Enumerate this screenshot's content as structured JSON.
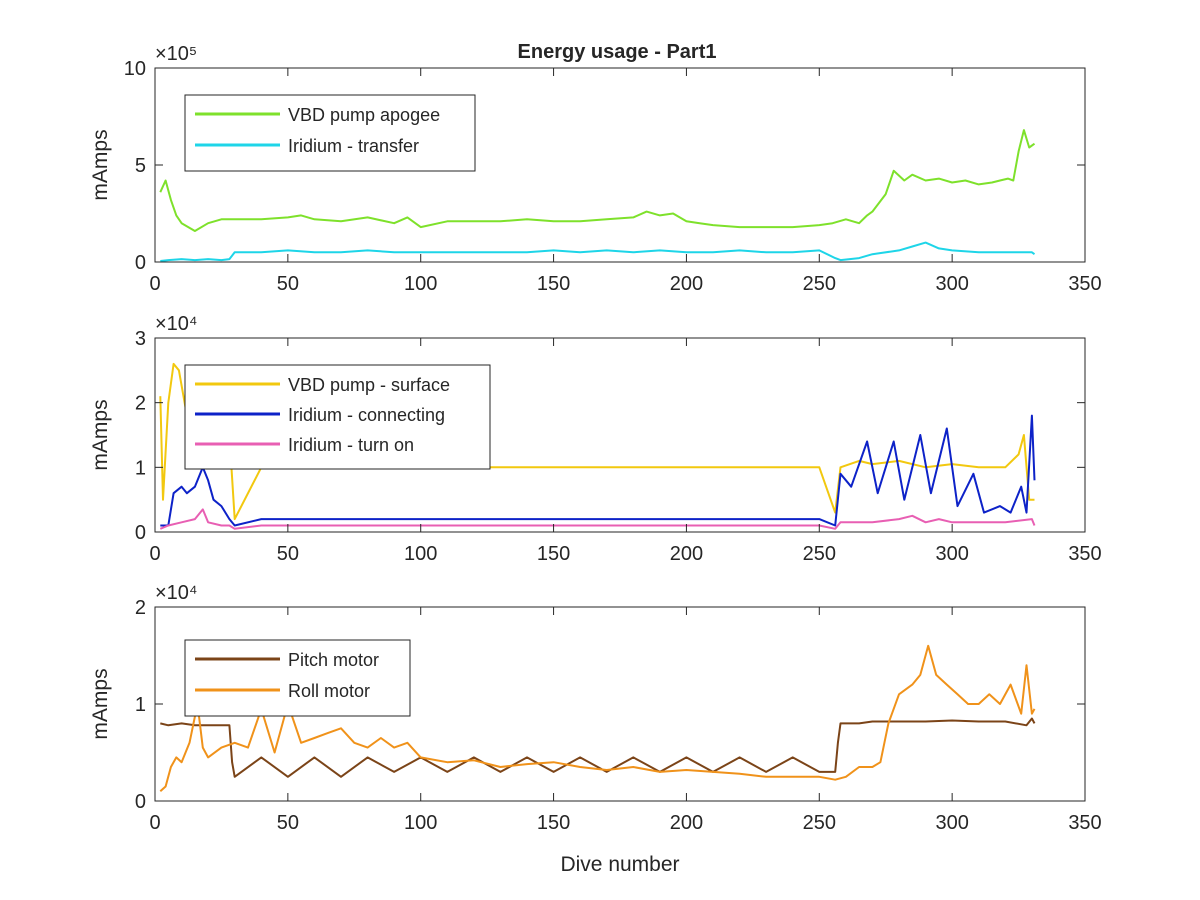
{
  "title": "Energy usage - Part1",
  "xlabel": "Dive number",
  "chart_data": [
    {
      "type": "line",
      "title": "Energy usage - Part1",
      "xlabel": "",
      "ylabel": "mAmps",
      "xlim": [
        0,
        350
      ],
      "ylim": [
        0,
        10
      ],
      "exponent": "×10⁵",
      "xticks": [
        "0",
        "50",
        "100",
        "150",
        "200",
        "250",
        "300",
        "350"
      ],
      "yticks": [
        "0",
        "5",
        "10"
      ],
      "legend": "top-left",
      "series": [
        {
          "name": "VBD pump apogee",
          "color": "#7ee12b",
          "x": [
            2,
            4,
            6,
            8,
            10,
            15,
            20,
            25,
            30,
            40,
            50,
            55,
            60,
            70,
            80,
            90,
            95,
            100,
            110,
            120,
            130,
            140,
            150,
            160,
            170,
            180,
            185,
            190,
            195,
            200,
            205,
            210,
            220,
            230,
            240,
            250,
            255,
            260,
            265,
            268,
            270,
            275,
            278,
            282,
            285,
            290,
            295,
            300,
            305,
            310,
            315,
            318,
            321,
            323,
            325,
            327,
            329,
            331
          ],
          "y": [
            3.6,
            4.2,
            3.2,
            2.4,
            2.0,
            1.6,
            2.0,
            2.2,
            2.2,
            2.2,
            2.3,
            2.4,
            2.2,
            2.1,
            2.3,
            2.0,
            2.3,
            1.8,
            2.1,
            2.1,
            2.1,
            2.2,
            2.1,
            2.1,
            2.2,
            2.3,
            2.6,
            2.4,
            2.5,
            2.1,
            2.0,
            1.9,
            1.8,
            1.8,
            1.8,
            1.9,
            2.0,
            2.2,
            2.0,
            2.4,
            2.6,
            3.5,
            4.7,
            4.2,
            4.5,
            4.2,
            4.3,
            4.1,
            4.2,
            4.0,
            4.1,
            4.2,
            4.3,
            4.2,
            5.7,
            6.8,
            5.9,
            6.1
          ]
        },
        {
          "name": "Iridium - transfer",
          "color": "#1ed5e8",
          "x": [
            2,
            5,
            10,
            15,
            20,
            25,
            28,
            30,
            40,
            50,
            60,
            70,
            80,
            90,
            100,
            110,
            120,
            130,
            140,
            150,
            160,
            170,
            180,
            190,
            200,
            210,
            220,
            230,
            240,
            250,
            256,
            258,
            265,
            270,
            280,
            285,
            290,
            295,
            300,
            310,
            320,
            330,
            331
          ],
          "y": [
            0.05,
            0.1,
            0.15,
            0.1,
            0.15,
            0.1,
            0.15,
            0.5,
            0.5,
            0.6,
            0.5,
            0.5,
            0.6,
            0.5,
            0.5,
            0.5,
            0.5,
            0.5,
            0.5,
            0.6,
            0.5,
            0.6,
            0.5,
            0.6,
            0.5,
            0.5,
            0.6,
            0.5,
            0.5,
            0.6,
            0.2,
            0.1,
            0.2,
            0.4,
            0.6,
            0.8,
            1.0,
            0.7,
            0.6,
            0.5,
            0.5,
            0.5,
            0.4
          ]
        }
      ]
    },
    {
      "type": "line",
      "title": "",
      "xlabel": "",
      "ylabel": "mAmps",
      "xlim": [
        0,
        350
      ],
      "ylim": [
        0,
        3
      ],
      "exponent": "×10⁴",
      "xticks": [
        "0",
        "50",
        "100",
        "150",
        "200",
        "250",
        "300",
        "350"
      ],
      "yticks": [
        "0",
        "1",
        "2",
        "3"
      ],
      "legend": "top-left",
      "series": [
        {
          "name": "VBD pump - surface",
          "color": "#f2c80f",
          "x": [
            2,
            3,
            5,
            7,
            9,
            12,
            15,
            20,
            25,
            28,
            30,
            40,
            50,
            60,
            70,
            80,
            90,
            100,
            110,
            120,
            130,
            140,
            150,
            160,
            170,
            180,
            190,
            200,
            210,
            220,
            230,
            240,
            250,
            256,
            258,
            265,
            270,
            280,
            290,
            300,
            310,
            320,
            325,
            327,
            329,
            331
          ],
          "y": [
            2.1,
            0.5,
            2.0,
            2.6,
            2.5,
            1.8,
            1.6,
            1.2,
            1.0,
            1.5,
            0.2,
            1.0,
            1.0,
            1.0,
            1.0,
            1.0,
            1.0,
            1.0,
            1.0,
            1.0,
            1.0,
            1.0,
            1.0,
            1.0,
            1.0,
            1.0,
            1.0,
            1.0,
            1.0,
            1.0,
            1.0,
            1.0,
            1.0,
            0.3,
            1.0,
            1.1,
            1.05,
            1.1,
            1.0,
            1.05,
            1.0,
            1.0,
            1.2,
            1.5,
            0.5,
            0.5
          ]
        },
        {
          "name": "Iridium - connecting",
          "color": "#0d22c8",
          "x": [
            2,
            5,
            7,
            10,
            12,
            15,
            18,
            20,
            22,
            25,
            28,
            30,
            40,
            50,
            60,
            70,
            80,
            90,
            100,
            110,
            120,
            130,
            140,
            150,
            160,
            170,
            180,
            190,
            200,
            210,
            220,
            230,
            240,
            250,
            256,
            258,
            262,
            268,
            272,
            278,
            282,
            288,
            292,
            298,
            302,
            308,
            312,
            318,
            322,
            326,
            328,
            330,
            331
          ],
          "y": [
            0.1,
            0.1,
            0.6,
            0.7,
            0.6,
            0.7,
            1.0,
            0.8,
            0.5,
            0.4,
            0.2,
            0.1,
            0.2,
            0.2,
            0.2,
            0.2,
            0.2,
            0.2,
            0.2,
            0.2,
            0.2,
            0.2,
            0.2,
            0.2,
            0.2,
            0.2,
            0.2,
            0.2,
            0.2,
            0.2,
            0.2,
            0.2,
            0.2,
            0.2,
            0.1,
            0.9,
            0.7,
            1.4,
            0.6,
            1.4,
            0.5,
            1.5,
            0.6,
            1.6,
            0.4,
            0.9,
            0.3,
            0.4,
            0.3,
            0.7,
            0.3,
            1.8,
            0.8
          ]
        },
        {
          "name": "Iridium - turn on",
          "color": "#e85fb3",
          "x": [
            2,
            5,
            10,
            15,
            18,
            20,
            25,
            28,
            30,
            40,
            50,
            60,
            70,
            80,
            90,
            100,
            110,
            120,
            130,
            140,
            150,
            160,
            170,
            180,
            190,
            200,
            210,
            220,
            230,
            240,
            250,
            256,
            258,
            265,
            270,
            280,
            285,
            290,
            295,
            300,
            310,
            320,
            330,
            331
          ],
          "y": [
            0.05,
            0.1,
            0.15,
            0.2,
            0.35,
            0.15,
            0.1,
            0.1,
            0.05,
            0.1,
            0.1,
            0.1,
            0.1,
            0.1,
            0.1,
            0.1,
            0.1,
            0.1,
            0.1,
            0.1,
            0.1,
            0.1,
            0.1,
            0.1,
            0.1,
            0.1,
            0.1,
            0.1,
            0.1,
            0.1,
            0.1,
            0.05,
            0.15,
            0.15,
            0.15,
            0.2,
            0.25,
            0.15,
            0.2,
            0.15,
            0.15,
            0.15,
            0.2,
            0.1
          ]
        }
      ]
    },
    {
      "type": "line",
      "title": "",
      "xlabel": "Dive number",
      "ylabel": "mAmps",
      "xlim": [
        0,
        350
      ],
      "ylim": [
        0,
        2
      ],
      "exponent": "×10⁴",
      "xticks": [
        "0",
        "50",
        "100",
        "150",
        "200",
        "250",
        "300",
        "350"
      ],
      "yticks": [
        "0",
        "1",
        "2"
      ],
      "legend": "top-left",
      "series": [
        {
          "name": "Pitch motor",
          "color": "#7b4418",
          "x": [
            2,
            5,
            10,
            15,
            20,
            25,
            28,
            29,
            30,
            40,
            50,
            60,
            70,
            80,
            90,
            100,
            110,
            120,
            130,
            140,
            150,
            160,
            170,
            180,
            190,
            200,
            210,
            220,
            230,
            240,
            250,
            256,
            257,
            258,
            265,
            270,
            280,
            290,
            300,
            310,
            320,
            328,
            330,
            331
          ],
          "y": [
            0.8,
            0.78,
            0.8,
            0.78,
            0.78,
            0.78,
            0.78,
            0.4,
            0.25,
            0.45,
            0.25,
            0.45,
            0.25,
            0.45,
            0.3,
            0.45,
            0.3,
            0.45,
            0.3,
            0.45,
            0.3,
            0.45,
            0.3,
            0.45,
            0.3,
            0.45,
            0.3,
            0.45,
            0.3,
            0.45,
            0.3,
            0.3,
            0.6,
            0.8,
            0.8,
            0.82,
            0.82,
            0.82,
            0.83,
            0.82,
            0.82,
            0.78,
            0.85,
            0.8
          ]
        },
        {
          "name": "Roll motor",
          "color": "#f0921a",
          "x": [
            2,
            4,
            6,
            8,
            10,
            13,
            16,
            18,
            20,
            25,
            30,
            35,
            40,
            45,
            50,
            55,
            60,
            65,
            70,
            75,
            80,
            85,
            90,
            95,
            100,
            110,
            120,
            130,
            140,
            150,
            160,
            170,
            180,
            190,
            200,
            210,
            220,
            230,
            240,
            250,
            256,
            260,
            265,
            270,
            273,
            276,
            280,
            285,
            288,
            291,
            294,
            298,
            302,
            306,
            310,
            314,
            318,
            322,
            326,
            328,
            330,
            331
          ],
          "y": [
            0.1,
            0.15,
            0.35,
            0.45,
            0.4,
            0.6,
            1.0,
            0.55,
            0.45,
            0.55,
            0.6,
            0.55,
            0.95,
            0.5,
            1.0,
            0.6,
            0.65,
            0.7,
            0.75,
            0.6,
            0.55,
            0.65,
            0.55,
            0.6,
            0.45,
            0.4,
            0.42,
            0.35,
            0.38,
            0.4,
            0.35,
            0.32,
            0.35,
            0.3,
            0.32,
            0.3,
            0.28,
            0.25,
            0.25,
            0.25,
            0.22,
            0.25,
            0.35,
            0.35,
            0.4,
            0.8,
            1.1,
            1.2,
            1.3,
            1.6,
            1.3,
            1.2,
            1.1,
            1.0,
            1.0,
            1.1,
            1.0,
            1.2,
            0.9,
            1.4,
            0.9,
            0.95
          ]
        }
      ]
    }
  ]
}
